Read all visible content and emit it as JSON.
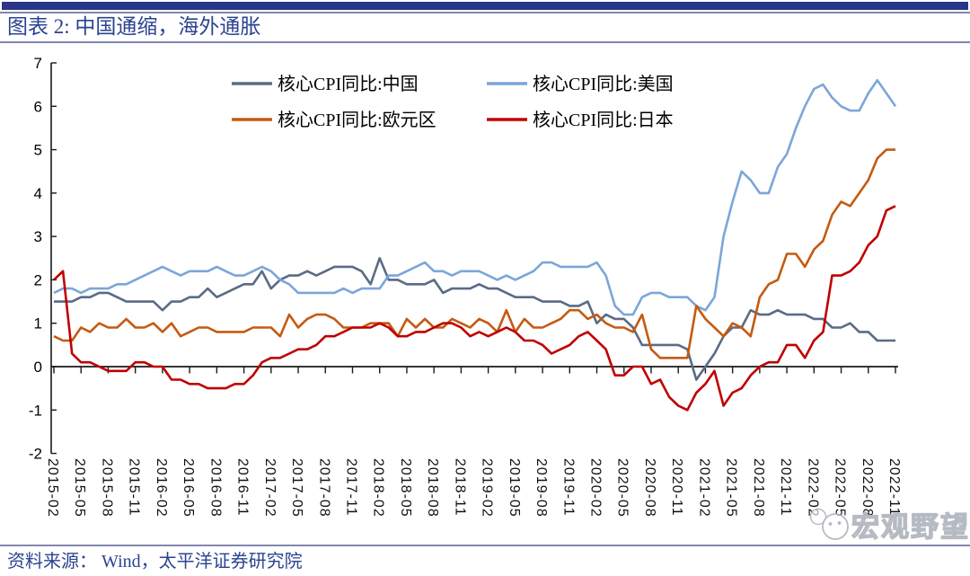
{
  "header": {
    "title": "图表 2:  中国通缩，海外通胀"
  },
  "footer": {
    "source": "资料来源：  Wind，太平洋证券研究院"
  },
  "watermark": {
    "icon": "wechat-icon",
    "text": "宏观野望"
  },
  "colors": {
    "accent_bar": "#2B3687",
    "rule": "#8287B0",
    "heading_text": "#2B4490",
    "axis": "#1a1a1a",
    "watermark_gray": "#b3b7bf",
    "series_china": "#5A6B85",
    "series_us": "#7CA6D9",
    "series_eurozone": "#C55A11",
    "series_japan": "#C00000"
  },
  "chart_data": {
    "type": "line",
    "title": "图表 2: 中国通缩，海外通胀",
    "xlabel": "",
    "ylabel": "",
    "ylim": [
      -2,
      7
    ],
    "yticks": [
      7,
      6,
      5,
      4,
      3,
      2,
      1,
      0,
      -1,
      -2
    ],
    "grid": false,
    "legend_position": "top",
    "x": [
      "2015-02",
      "2015-03",
      "2015-04",
      "2015-05",
      "2015-06",
      "2015-07",
      "2015-08",
      "2015-09",
      "2015-10",
      "2015-11",
      "2015-12",
      "2016-01",
      "2016-02",
      "2016-03",
      "2016-04",
      "2016-05",
      "2016-06",
      "2016-07",
      "2016-08",
      "2016-09",
      "2016-10",
      "2016-11",
      "2016-12",
      "2017-01",
      "2017-02",
      "2017-03",
      "2017-04",
      "2017-05",
      "2017-06",
      "2017-07",
      "2017-08",
      "2017-09",
      "2017-10",
      "2017-11",
      "2017-12",
      "2018-01",
      "2018-02",
      "2018-03",
      "2018-04",
      "2018-05",
      "2018-06",
      "2018-07",
      "2018-08",
      "2018-09",
      "2018-10",
      "2018-11",
      "2018-12",
      "2019-01",
      "2019-02",
      "2019-03",
      "2019-04",
      "2019-05",
      "2019-06",
      "2019-07",
      "2019-08",
      "2019-09",
      "2019-10",
      "2019-11",
      "2019-12",
      "2020-01",
      "2020-02",
      "2020-03",
      "2020-04",
      "2020-05",
      "2020-06",
      "2020-07",
      "2020-08",
      "2020-09",
      "2020-10",
      "2020-11",
      "2020-12",
      "2021-01",
      "2021-02",
      "2021-03",
      "2021-04",
      "2021-05",
      "2021-06",
      "2021-07",
      "2021-08",
      "2021-09",
      "2021-10",
      "2021-11",
      "2021-12",
      "2022-01",
      "2022-02",
      "2022-03",
      "2022-04",
      "2022-05",
      "2022-06",
      "2022-07",
      "2022-08",
      "2022-09",
      "2022-10",
      "2022-11"
    ],
    "x_ticks": [
      "2015-02",
      "2015-05",
      "2015-08",
      "2015-11",
      "2016-02",
      "2016-05",
      "2016-08",
      "2016-11",
      "2017-02",
      "2017-05",
      "2017-08",
      "2017-11",
      "2018-02",
      "2018-05",
      "2018-08",
      "2018-11",
      "2019-02",
      "2019-05",
      "2019-08",
      "2019-11",
      "2020-02",
      "2020-05",
      "2020-08",
      "2020-11",
      "2021-02",
      "2021-05",
      "2021-08",
      "2021-11",
      "2022-02",
      "2022-05",
      "2022-08",
      "2022-11"
    ],
    "series": [
      {
        "key": "china",
        "name": "核心CPI同比:中国",
        "color": "#5A6B85",
        "values": [
          1.5,
          1.5,
          1.5,
          1.6,
          1.6,
          1.7,
          1.7,
          1.6,
          1.5,
          1.5,
          1.5,
          1.5,
          1.3,
          1.5,
          1.5,
          1.6,
          1.6,
          1.8,
          1.6,
          1.7,
          1.8,
          1.9,
          1.9,
          2.2,
          1.8,
          2.0,
          2.1,
          2.1,
          2.2,
          2.1,
          2.2,
          2.3,
          2.3,
          2.3,
          2.2,
          1.9,
          2.5,
          2.0,
          2.0,
          1.9,
          1.9,
          1.9,
          2.0,
          1.7,
          1.8,
          1.8,
          1.8,
          1.9,
          1.8,
          1.8,
          1.7,
          1.6,
          1.6,
          1.6,
          1.5,
          1.5,
          1.5,
          1.4,
          1.4,
          1.5,
          1.0,
          1.2,
          1.1,
          1.1,
          0.9,
          0.5,
          0.5,
          0.5,
          0.5,
          0.5,
          0.4,
          -0.3,
          0.0,
          0.3,
          0.7,
          0.9,
          0.9,
          1.3,
          1.2,
          1.2,
          1.3,
          1.2,
          1.2,
          1.2,
          1.1,
          1.1,
          0.9,
          0.9,
          1.0,
          0.8,
          0.8,
          0.6,
          0.6,
          0.6
        ]
      },
      {
        "key": "us",
        "name": "核心CPI同比:美国",
        "color": "#7CA6D9",
        "values": [
          1.7,
          1.8,
          1.8,
          1.7,
          1.8,
          1.8,
          1.8,
          1.9,
          1.9,
          2.0,
          2.1,
          2.2,
          2.3,
          2.2,
          2.1,
          2.2,
          2.2,
          2.2,
          2.3,
          2.2,
          2.1,
          2.1,
          2.2,
          2.3,
          2.2,
          2.0,
          1.9,
          1.7,
          1.7,
          1.7,
          1.7,
          1.7,
          1.8,
          1.7,
          1.8,
          1.8,
          1.8,
          2.1,
          2.1,
          2.2,
          2.3,
          2.4,
          2.2,
          2.2,
          2.1,
          2.2,
          2.2,
          2.2,
          2.1,
          2.0,
          2.1,
          2.0,
          2.1,
          2.2,
          2.4,
          2.4,
          2.3,
          2.3,
          2.3,
          2.3,
          2.4,
          2.1,
          1.4,
          1.2,
          1.2,
          1.6,
          1.7,
          1.7,
          1.6,
          1.6,
          1.6,
          1.4,
          1.3,
          1.6,
          3.0,
          3.8,
          4.5,
          4.3,
          4.0,
          4.0,
          4.6,
          4.9,
          5.5,
          6.0,
          6.4,
          6.5,
          6.2,
          6.0,
          5.9,
          5.9,
          6.3,
          6.6,
          6.3,
          6.0
        ]
      },
      {
        "key": "eurozone",
        "name": "核心CPI同比:欧元区",
        "color": "#C55A11",
        "values": [
          0.7,
          0.6,
          0.6,
          0.9,
          0.8,
          1.0,
          0.9,
          0.9,
          1.1,
          0.9,
          0.9,
          1.0,
          0.8,
          1.0,
          0.7,
          0.8,
          0.9,
          0.9,
          0.8,
          0.8,
          0.8,
          0.8,
          0.9,
          0.9,
          0.9,
          0.7,
          1.2,
          0.9,
          1.1,
          1.2,
          1.2,
          1.1,
          0.9,
          0.9,
          0.9,
          1.0,
          1.0,
          1.0,
          0.7,
          1.1,
          0.9,
          1.1,
          0.9,
          0.9,
          1.1,
          1.0,
          0.9,
          1.1,
          1.0,
          0.8,
          1.3,
          0.8,
          1.1,
          0.9,
          0.9,
          1.0,
          1.1,
          1.3,
          1.3,
          1.1,
          1.2,
          1.0,
          0.9,
          0.9,
          0.8,
          1.2,
          0.4,
          0.2,
          0.2,
          0.2,
          0.2,
          1.4,
          1.1,
          0.9,
          0.7,
          1.0,
          0.9,
          0.7,
          1.6,
          1.9,
          2.0,
          2.6,
          2.6,
          2.3,
          2.7,
          2.9,
          3.5,
          3.8,
          3.7,
          4.0,
          4.3,
          4.8,
          5.0,
          5.0
        ]
      },
      {
        "key": "japan",
        "name": "核心CPI同比:日本",
        "color": "#C00000",
        "values": [
          2.0,
          2.2,
          0.3,
          0.1,
          0.1,
          0.0,
          -0.1,
          -0.1,
          -0.1,
          0.1,
          0.1,
          0.0,
          0.0,
          -0.3,
          -0.3,
          -0.4,
          -0.4,
          -0.5,
          -0.5,
          -0.5,
          -0.4,
          -0.4,
          -0.2,
          0.1,
          0.2,
          0.2,
          0.3,
          0.4,
          0.4,
          0.5,
          0.7,
          0.7,
          0.8,
          0.9,
          0.9,
          0.9,
          1.0,
          0.9,
          0.7,
          0.7,
          0.8,
          0.8,
          0.9,
          1.0,
          1.0,
          0.9,
          0.7,
          0.8,
          0.7,
          0.8,
          0.9,
          0.8,
          0.6,
          0.6,
          0.5,
          0.3,
          0.4,
          0.5,
          0.7,
          0.8,
          0.6,
          0.4,
          -0.2,
          -0.2,
          0.0,
          0.0,
          -0.4,
          -0.3,
          -0.7,
          -0.9,
          -1.0,
          -0.6,
          -0.4,
          -0.1,
          -0.9,
          -0.6,
          -0.5,
          -0.2,
          0.0,
          0.1,
          0.1,
          0.5,
          0.5,
          0.2,
          0.6,
          0.8,
          2.1,
          2.1,
          2.2,
          2.4,
          2.8,
          3.0,
          3.6,
          3.7
        ]
      }
    ]
  }
}
